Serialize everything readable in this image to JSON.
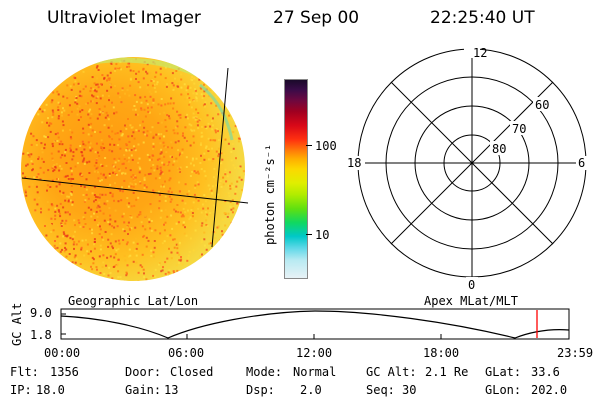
{
  "header": {
    "instrument": "Ultraviolet Imager",
    "date": "27 Sep 00",
    "time": "22:25:40 UT"
  },
  "colorbar": {
    "unit_label": "photon cm⁻²s⁻¹",
    "tick_labels": [
      "100",
      "10"
    ]
  },
  "polar_plot": {
    "mlt_labels": [
      "12",
      "18",
      "6",
      "0"
    ],
    "lat_labels": [
      "60",
      "70",
      "80"
    ]
  },
  "panel_labels": {
    "left": "Geographic Lat/Lon",
    "right": "Apex MLat/MLT"
  },
  "altitude_plot": {
    "ylabel": "GC Alt",
    "y_ticks": [
      "9.0",
      "1.8"
    ],
    "x_ticks": [
      "00:00",
      "06:00",
      "12:00",
      "18:00",
      "23:59"
    ],
    "marker_color": "#ff0000"
  },
  "status": {
    "row1": [
      {
        "key": "Flt:",
        "val": "1356"
      },
      {
        "key": "Door:",
        "val": "Closed"
      },
      {
        "key": "Mode:",
        "val": "Normal"
      },
      {
        "key": "GC Alt:",
        "val": "2.1 Re"
      },
      {
        "key": "GLat:",
        "val": "33.6"
      }
    ],
    "row2": [
      {
        "key": "IP:",
        "val": "18.0"
      },
      {
        "key": "Gain:",
        "val": "13"
      },
      {
        "key": "Dsp:",
        "val": "2.0"
      },
      {
        "key": "Seq:",
        "val": "30"
      },
      {
        "key": "GLon:",
        "val": "202.0"
      }
    ]
  }
}
